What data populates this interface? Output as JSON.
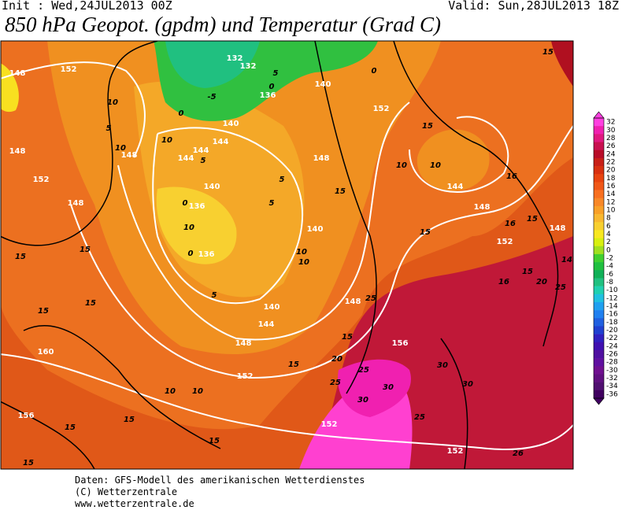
{
  "header": {
    "init": "Init : Wed,24JUL2013 00Z",
    "valid": "Valid: Sun,28JUL2013 18Z",
    "title": "850 hPa Geopot. (gpdm) und Temperatur (Grad C)"
  },
  "map": {
    "geopot_labels": [
      148,
      152,
      132,
      132,
      136,
      140,
      140,
      144,
      144,
      144,
      148,
      148,
      152,
      148,
      140,
      136,
      136,
      140,
      148,
      152,
      144,
      148,
      152,
      148,
      140,
      144,
      148,
      152,
      148,
      156,
      160,
      156,
      152,
      152
    ],
    "temp_labels": [
      15,
      10,
      5,
      0,
      -5,
      5,
      0,
      0,
      10,
      10,
      5,
      5,
      5,
      0,
      0,
      15,
      10,
      10,
      15,
      10,
      10,
      5,
      15,
      16,
      16,
      15,
      15,
      15,
      15,
      15,
      15,
      20,
      16,
      25,
      25,
      15,
      20,
      15,
      25,
      25,
      30,
      30,
      30,
      30,
      25,
      26,
      10,
      10,
      15,
      15,
      15,
      15,
      14,
      10
    ]
  },
  "colorbar": {
    "levels": [
      32,
      30,
      28,
      26,
      24,
      22,
      20,
      18,
      16,
      14,
      12,
      10,
      8,
      6,
      4,
      2,
      0,
      -2,
      -4,
      -6,
      -8,
      -10,
      -12,
      -14,
      -16,
      -18,
      -20,
      -22,
      -24,
      -26,
      -28,
      -30,
      -32,
      -34,
      -36
    ],
    "colors": [
      "#ff40e0",
      "#f020b0",
      "#e01880",
      "#c81050",
      "#b80c28",
      "#c82018",
      "#d83010",
      "#e84410",
      "#f05818",
      "#f87020",
      "#f88828",
      "#f8a028",
      "#f8b830",
      "#f8d030",
      "#f8e820",
      "#d8f010",
      "#a0e020",
      "#40d030",
      "#20c040",
      "#10b058",
      "#20c080",
      "#20d0b0",
      "#20c0e0",
      "#20a0f0",
      "#2080f0",
      "#2060e0",
      "#2040d0",
      "#3020c0",
      "#4010b0",
      "#5010a0",
      "#6010a0",
      "#701090",
      "#601080",
      "#501070",
      "#400060"
    ]
  },
  "footer": {
    "lines": [
      "Daten: GFS-Modell des amerikanischen Wetterdienstes",
      "(C) Wetterzentrale",
      "www.wetterzentrale.de"
    ]
  }
}
